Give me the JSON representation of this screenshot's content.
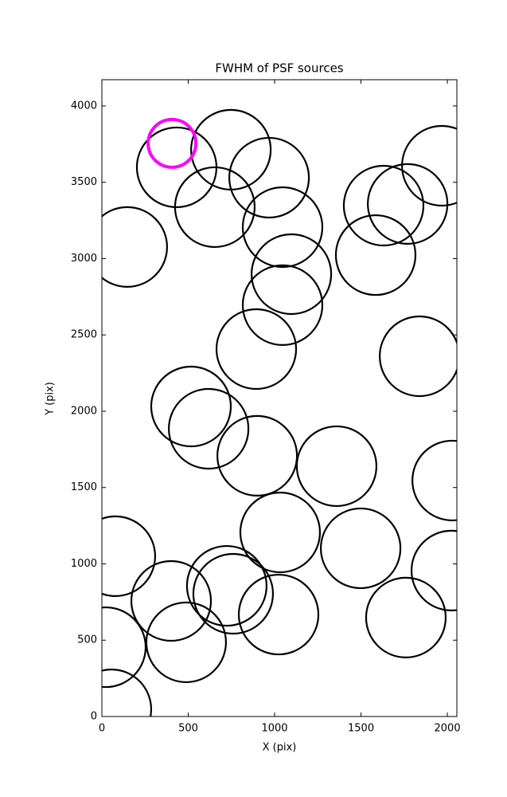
{
  "chart_data": {
    "type": "scatter",
    "title": "FWHM of PSF sources",
    "x_label": "X (pix)",
    "y_label": "Y (pix)",
    "xlim": [
      0,
      2055
    ],
    "ylim": [
      0,
      4172
    ],
    "xticks": [
      0,
      500,
      1000,
      1500,
      2000
    ],
    "yticks": [
      0,
      500,
      1000,
      1500,
      2000,
      2500,
      3000,
      3500,
      4000
    ],
    "series": [
      {
        "color": "#000000",
        "x": [
          147,
          433,
          747,
          654,
          968,
          1046,
          1097,
          1046,
          894,
          1631,
          1770,
          1585,
          1968,
          1839,
          516,
          618,
          899,
          1359,
          2028,
          1032,
          1498,
          78,
          401,
          723,
          760,
          1023,
          488,
          1760,
          2023,
          23,
          55
        ],
        "values": [
          3076,
          3598,
          3713,
          3337,
          3530,
          3206,
          2898,
          2695,
          2407,
          3347,
          3358,
          3023,
          3608,
          2360,
          2031,
          1885,
          1708,
          1640,
          1546,
          1206,
          1102,
          1050,
          757,
          856,
          804,
          668,
          486,
          648,
          956,
          454,
          47
        ]
      },
      {
        "color": "#ff00ff",
        "x": [
          406
        ],
        "values": [
          3755
        ]
      }
    ]
  }
}
